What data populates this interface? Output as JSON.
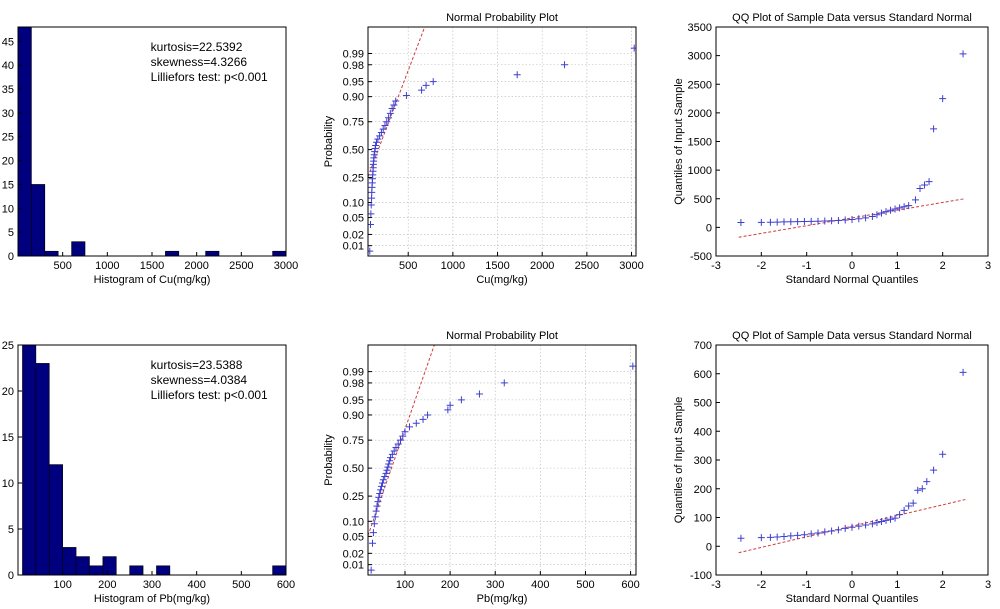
{
  "chart_data": [
    {
      "id": "hist_cu",
      "type": "histogram",
      "title": "",
      "xlabel": "Histogram of Cu(mg/kg)",
      "ylabel": "",
      "xlim": [
        0,
        3000
      ],
      "ylim": [
        0,
        48
      ],
      "xticks": [
        500,
        1000,
        1500,
        2000,
        2500,
        3000
      ],
      "yticks": [
        0,
        5,
        10,
        15,
        20,
        25,
        30,
        35,
        40,
        45
      ],
      "bins": [
        {
          "x0": 0,
          "x1": 150,
          "count": 48
        },
        {
          "x0": 150,
          "x1": 300,
          "count": 15
        },
        {
          "x0": 300,
          "x1": 450,
          "count": 1
        },
        {
          "x0": 600,
          "x1": 750,
          "count": 3
        },
        {
          "x0": 1650,
          "x1": 1800,
          "count": 1
        },
        {
          "x0": 2100,
          "x1": 2250,
          "count": 1
        },
        {
          "x0": 2850,
          "x1": 3000,
          "count": 1
        }
      ],
      "annotations": [
        "kurtosis=22.5392",
        "skewness=4.3266",
        "Lilliefors test: p<0.001"
      ]
    },
    {
      "id": "npp_cu",
      "type": "normal-probability",
      "title": "Normal Probability Plot",
      "xlabel": "Cu(mg/kg)",
      "ylabel": "Probability",
      "xlim": [
        50,
        3050
      ],
      "xticks": [
        500,
        1000,
        1500,
        2000,
        2500,
        3000
      ],
      "yticks": [
        0.01,
        0.02,
        0.05,
        0.1,
        0.25,
        0.5,
        0.75,
        0.9,
        0.95,
        0.98,
        0.99
      ],
      "ytick_labels": [
        "0.01",
        "0.02",
        "0.05",
        "0.10",
        "0.25",
        "0.50",
        "0.75",
        "0.90",
        "0.95",
        "0.98",
        "0.99"
      ],
      "ref_line": {
        "mu": 165,
        "sigma": 175
      },
      "points": [
        [
          70,
          0.007
        ],
        [
          78,
          0.035
        ],
        [
          82,
          0.06
        ],
        [
          86,
          0.09
        ],
        [
          90,
          0.12
        ],
        [
          92,
          0.15
        ],
        [
          95,
          0.18
        ],
        [
          98,
          0.21
        ],
        [
          100,
          0.24
        ],
        [
          103,
          0.27
        ],
        [
          106,
          0.3
        ],
        [
          108,
          0.33
        ],
        [
          110,
          0.36
        ],
        [
          113,
          0.39
        ],
        [
          116,
          0.42
        ],
        [
          120,
          0.45
        ],
        [
          125,
          0.48
        ],
        [
          130,
          0.51
        ],
        [
          135,
          0.54
        ],
        [
          145,
          0.57
        ],
        [
          160,
          0.6
        ],
        [
          180,
          0.63
        ],
        [
          200,
          0.66
        ],
        [
          220,
          0.69
        ],
        [
          240,
          0.72
        ],
        [
          260,
          0.75
        ],
        [
          280,
          0.78
        ],
        [
          300,
          0.81
        ],
        [
          320,
          0.84
        ],
        [
          340,
          0.86
        ],
        [
          360,
          0.88
        ],
        [
          480,
          0.905
        ],
        [
          650,
          0.925
        ],
        [
          700,
          0.94
        ],
        [
          780,
          0.95
        ],
        [
          1720,
          0.965
        ],
        [
          2250,
          0.98
        ],
        [
          3030,
          0.993
        ]
      ]
    },
    {
      "id": "qq_cu",
      "type": "qq",
      "title": "QQ Plot of Sample Data versus Standard Normal",
      "xlabel": "Standard Normal Quantiles",
      "ylabel": "Quantiles of Input Sample",
      "xlim": [
        -3,
        3
      ],
      "ylim": [
        -500,
        3500
      ],
      "xticks": [
        -3,
        -2,
        -1,
        0,
        1,
        2,
        3
      ],
      "yticks": [
        -500,
        0,
        500,
        1000,
        1500,
        2000,
        2500,
        3000,
        3500
      ],
      "ref_line": {
        "intercept": 165,
        "slope": 135
      },
      "points": [
        [
          -2.45,
          85
        ],
        [
          -2.0,
          88
        ],
        [
          -1.8,
          90
        ],
        [
          -1.65,
          92
        ],
        [
          -1.5,
          95
        ],
        [
          -1.35,
          98
        ],
        [
          -1.2,
          100
        ],
        [
          -1.05,
          102
        ],
        [
          -0.9,
          105
        ],
        [
          -0.75,
          108
        ],
        [
          -0.6,
          112
        ],
        [
          -0.45,
          115
        ],
        [
          -0.3,
          120
        ],
        [
          -0.15,
          128
        ],
        [
          0.0,
          138
        ],
        [
          0.15,
          150
        ],
        [
          0.3,
          165
        ],
        [
          0.45,
          190
        ],
        [
          0.55,
          220
        ],
        [
          0.65,
          250
        ],
        [
          0.75,
          275
        ],
        [
          0.85,
          300
        ],
        [
          0.95,
          320
        ],
        [
          1.05,
          340
        ],
        [
          1.15,
          360
        ],
        [
          1.25,
          380
        ],
        [
          1.4,
          480
        ],
        [
          1.5,
          680
        ],
        [
          1.6,
          740
        ],
        [
          1.7,
          800
        ],
        [
          1.8,
          1720
        ],
        [
          2.0,
          2250
        ],
        [
          2.45,
          3030
        ]
      ]
    },
    {
      "id": "hist_pb",
      "type": "histogram",
      "title": "",
      "xlabel": "Histogram of Pb(mg/kg)",
      "ylabel": "",
      "xlim": [
        0,
        600
      ],
      "ylim": [
        0,
        25
      ],
      "xticks": [
        100,
        200,
        300,
        400,
        500,
        600
      ],
      "yticks": [
        0,
        5,
        10,
        15,
        20,
        25
      ],
      "bins": [
        {
          "x0": 10,
          "x1": 40,
          "count": 25
        },
        {
          "x0": 40,
          "x1": 70,
          "count": 23
        },
        {
          "x0": 70,
          "x1": 100,
          "count": 12
        },
        {
          "x0": 100,
          "x1": 130,
          "count": 3
        },
        {
          "x0": 130,
          "x1": 160,
          "count": 2
        },
        {
          "x0": 160,
          "x1": 190,
          "count": 1
        },
        {
          "x0": 190,
          "x1": 220,
          "count": 2
        },
        {
          "x0": 250,
          "x1": 280,
          "count": 1
        },
        {
          "x0": 310,
          "x1": 340,
          "count": 1
        },
        {
          "x0": 570,
          "x1": 600,
          "count": 1
        }
      ],
      "annotations": [
        "kurtosis=23.5388",
        "skewness=4.0384",
        "Lilliefors test: p<0.001"
      ]
    },
    {
      "id": "npp_pb",
      "type": "normal-probability",
      "title": "Normal Probability Plot",
      "xlabel": "Pb(mg/kg)",
      "ylabel": "Probability",
      "xlim": [
        18,
        612
      ],
      "xticks": [
        100,
        200,
        300,
        400,
        500,
        600
      ],
      "yticks": [
        0.01,
        0.02,
        0.05,
        0.1,
        0.25,
        0.5,
        0.75,
        0.9,
        0.95,
        0.98,
        0.99
      ],
      "ytick_labels": [
        "0.01",
        "0.02",
        "0.05",
        "0.10",
        "0.25",
        "0.50",
        "0.75",
        "0.90",
        "0.95",
        "0.98",
        "0.99"
      ],
      "ref_line": {
        "mu": 70,
        "sigma": 32
      },
      "points": [
        [
          25,
          0.007
        ],
        [
          28,
          0.035
        ],
        [
          30,
          0.06
        ],
        [
          32,
          0.09
        ],
        [
          34,
          0.12
        ],
        [
          36,
          0.15
        ],
        [
          38,
          0.18
        ],
        [
          40,
          0.21
        ],
        [
          42,
          0.24
        ],
        [
          44,
          0.27
        ],
        [
          46,
          0.3
        ],
        [
          48,
          0.33
        ],
        [
          50,
          0.36
        ],
        [
          52,
          0.39
        ],
        [
          55,
          0.42
        ],
        [
          58,
          0.45
        ],
        [
          60,
          0.48
        ],
        [
          62,
          0.51
        ],
        [
          64,
          0.54
        ],
        [
          66,
          0.57
        ],
        [
          68,
          0.6
        ],
        [
          72,
          0.63
        ],
        [
          76,
          0.66
        ],
        [
          80,
          0.69
        ],
        [
          85,
          0.72
        ],
        [
          90,
          0.75
        ],
        [
          95,
          0.78
        ],
        [
          100,
          0.81
        ],
        [
          110,
          0.84
        ],
        [
          125,
          0.86
        ],
        [
          140,
          0.88
        ],
        [
          150,
          0.9
        ],
        [
          195,
          0.92
        ],
        [
          200,
          0.935
        ],
        [
          225,
          0.95
        ],
        [
          265,
          0.963
        ],
        [
          320,
          0.98
        ],
        [
          605,
          0.993
        ]
      ]
    },
    {
      "id": "qq_pb",
      "type": "qq",
      "title": "QQ Plot of Sample Data versus Standard Normal",
      "xlabel": "Standard Normal Quantiles",
      "ylabel": "Quantiles of Input Sample",
      "xlim": [
        -3,
        3
      ],
      "ylim": [
        -100,
        700
      ],
      "xticks": [
        -3,
        -2,
        -1,
        0,
        1,
        2,
        3
      ],
      "yticks": [
        -100,
        0,
        100,
        200,
        300,
        400,
        500,
        600,
        700
      ],
      "ref_line": {
        "intercept": 70,
        "slope": 37
      },
      "points": [
        [
          -2.45,
          28
        ],
        [
          -2.0,
          30
        ],
        [
          -1.8,
          31
        ],
        [
          -1.65,
          32
        ],
        [
          -1.5,
          34
        ],
        [
          -1.35,
          36
        ],
        [
          -1.2,
          38
        ],
        [
          -1.05,
          40
        ],
        [
          -0.9,
          43
        ],
        [
          -0.75,
          46
        ],
        [
          -0.6,
          50
        ],
        [
          -0.45,
          53
        ],
        [
          -0.3,
          57
        ],
        [
          -0.15,
          62
        ],
        [
          0.0,
          66
        ],
        [
          0.15,
          70
        ],
        [
          0.3,
          74
        ],
        [
          0.45,
          78
        ],
        [
          0.55,
          82
        ],
        [
          0.65,
          86
        ],
        [
          0.75,
          90
        ],
        [
          0.85,
          94
        ],
        [
          0.95,
          98
        ],
        [
          1.05,
          110
        ],
        [
          1.15,
          125
        ],
        [
          1.25,
          140
        ],
        [
          1.35,
          150
        ],
        [
          1.45,
          195
        ],
        [
          1.55,
          200
        ],
        [
          1.65,
          225
        ],
        [
          1.8,
          265
        ],
        [
          2.0,
          320
        ],
        [
          2.45,
          605
        ]
      ]
    }
  ]
}
